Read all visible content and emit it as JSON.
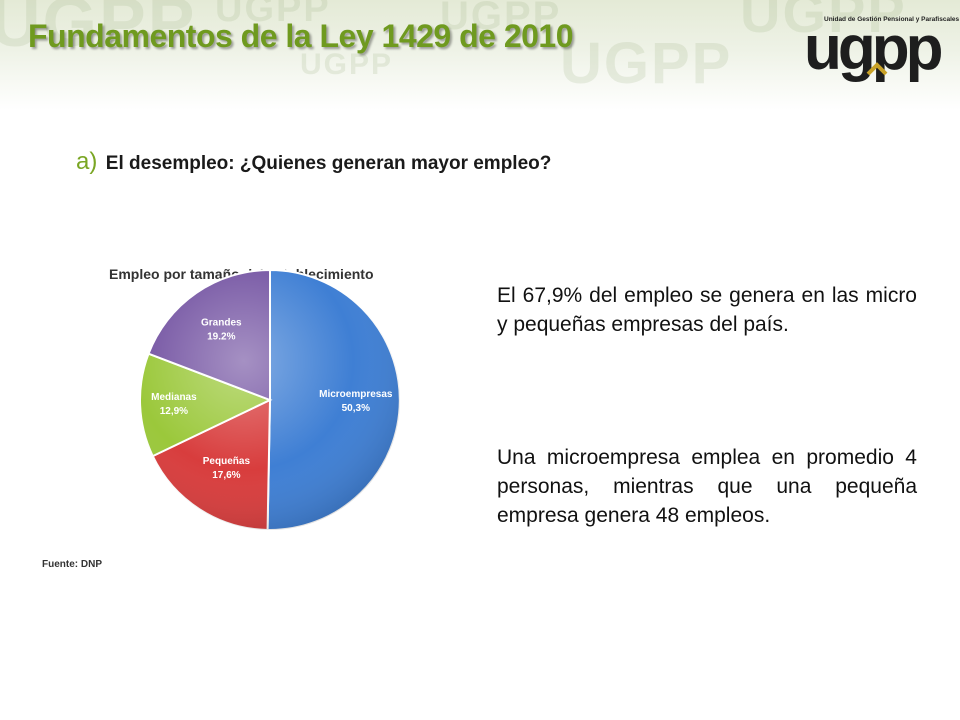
{
  "header": {
    "title": "Fundamentos de la Ley 1429 de 2010",
    "watermark_text": "UGPP",
    "logo": {
      "tagline": "Unidad de Gestión Pensional y Parafiscales",
      "wordmark": "ugpp",
      "chevron_color": "#c9a227"
    }
  },
  "subtitle": {
    "letter": "a)",
    "text": "El  desempleo: ¿Quienes generan mayor empleo?"
  },
  "chart_data": {
    "type": "pie",
    "title": "Empleo por tamaño del establecimiento",
    "source": "Fuente: DNP",
    "slices": [
      {
        "label": "Microempresas",
        "value": 50.3,
        "display": "50,3%",
        "color": "#3f7fd4"
      },
      {
        "label": "Pequeñas",
        "value": 17.6,
        "display": "17,6%",
        "color": "#d83d3d"
      },
      {
        "label": "Medianas",
        "value": 12.9,
        "display": "12,9%",
        "color": "#9bc83b"
      },
      {
        "label": "Grandes",
        "value": 19.2,
        "display": "19.2%",
        "color": "#7555a3"
      }
    ]
  },
  "body": {
    "paragraph1": "El 67,9% del empleo se genera en las micro y pequeñas empresas del país.",
    "paragraph2": "Una microempresa emplea en promedio 4 personas, mientras que una pequeña empresa genera 48 empleos."
  },
  "colors": {
    "title_green": "#6f9a1f",
    "accent_green": "#7aa624"
  }
}
